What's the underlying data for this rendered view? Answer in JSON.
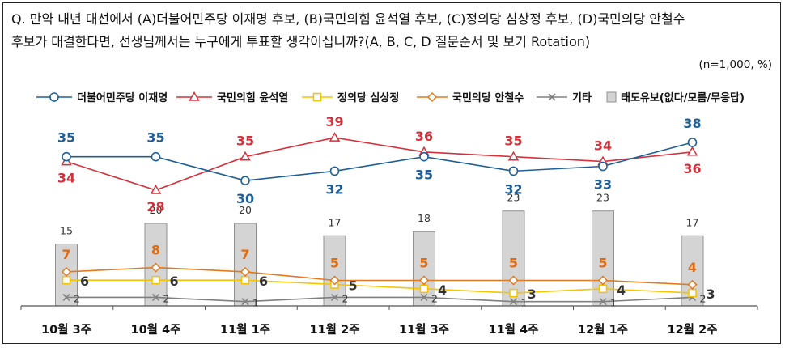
{
  "question": {
    "line1": "Q. 만약 내년 대선에서 (A)더불어민주당 이재명 후보, (B)국민의힘 윤석열 후보, (C)정의당 심상정 후보, (D)국민의당 안철수",
    "line2": "후보가 대결한다면, 선생님께서는 누구에게 투표할 생각이십니까?(A, B, C, D 질문순서 및 보기 Rotation)"
  },
  "note": "(n=1,000,  %)",
  "colors": {
    "lee": "#1f5f96",
    "yoon": "#d2323c",
    "sim": "#f5c400",
    "ahn": "#e07a1f",
    "etc": "#808080",
    "undecided_fill": "#d4d4d4",
    "undecided_stroke": "#909090",
    "label_lee": "#1f5f96",
    "label_yoon": "#d2323c",
    "label_ahn": "#e06b10",
    "label_small": "#333333"
  },
  "chart_data": {
    "type": "line",
    "categories": [
      "10월 3주",
      "10월 4주",
      "11월 1주",
      "11월 2주",
      "11월 3주",
      "11월 4주",
      "12월 1주",
      "12월 2주"
    ],
    "series": [
      {
        "key": "lee",
        "name": "더불어민주당 이재명",
        "type": "line",
        "marker": "circle",
        "values": [
          35,
          35,
          30,
          32,
          35,
          32,
          33,
          38
        ]
      },
      {
        "key": "yoon",
        "name": "국민의힘 윤석열",
        "type": "line",
        "marker": "triangle",
        "values": [
          34,
          28,
          35,
          39,
          36,
          35,
          34,
          36
        ]
      },
      {
        "key": "sim",
        "name": "정의당 심상정",
        "type": "line",
        "marker": "square",
        "values": [
          6,
          6,
          6,
          5,
          4,
          3,
          4,
          3
        ]
      },
      {
        "key": "ahn",
        "name": "국민의당 안철수",
        "type": "line",
        "marker": "diamond",
        "values": [
          7,
          8,
          7,
          5,
          5,
          5,
          5,
          4
        ]
      },
      {
        "key": "etc",
        "name": "기타",
        "type": "line",
        "marker": "x",
        "values": [
          2,
          2,
          1,
          2,
          2,
          1,
          1,
          2
        ]
      },
      {
        "key": "undecided",
        "name": "태도유보(없다/모름/무응답)",
        "type": "bar",
        "values": [
          15,
          20,
          20,
          17,
          18,
          23,
          23,
          17
        ]
      }
    ],
    "legend_position": "top",
    "grid": false
  }
}
